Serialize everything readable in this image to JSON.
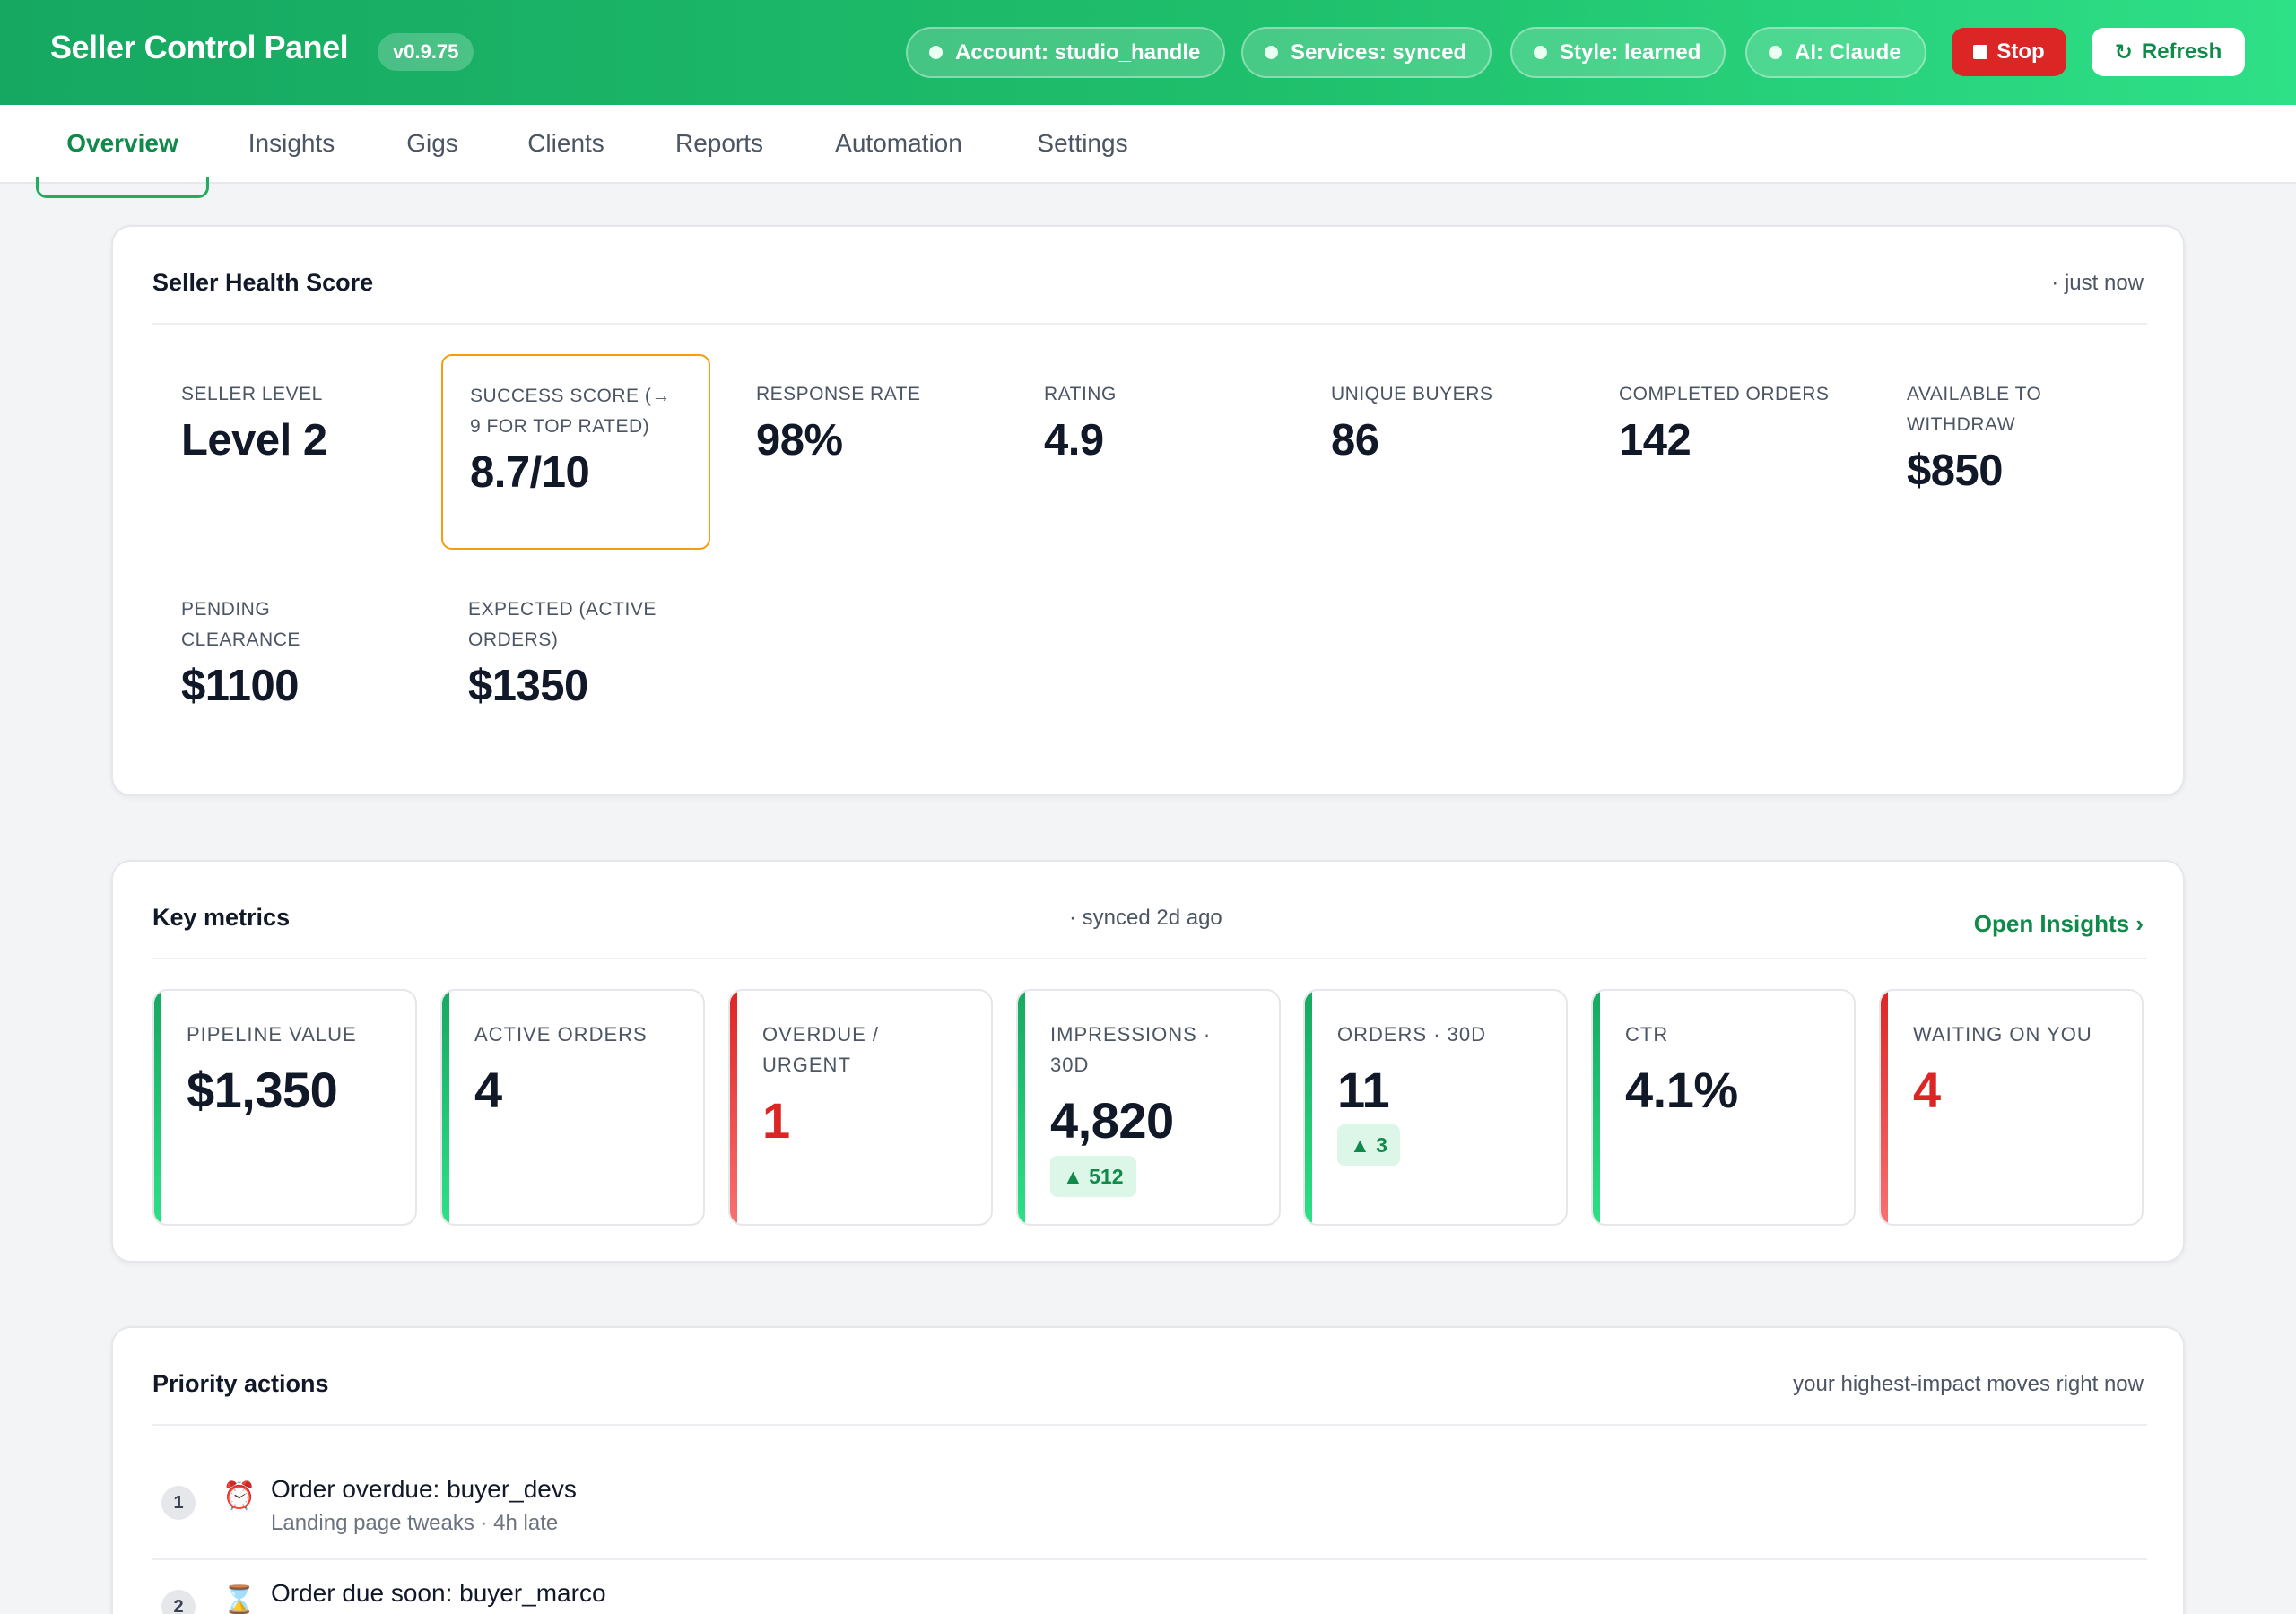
{
  "header": {
    "title": "Seller Control Panel",
    "version": "v0.9.75",
    "pills": [
      {
        "label": "Account: studio_handle"
      },
      {
        "label": "Services: synced"
      },
      {
        "label": "Style: learned"
      },
      {
        "label": "AI: Claude"
      }
    ],
    "stop_label": "Stop",
    "refresh_label": "Refresh",
    "refresh_icon": "↻"
  },
  "tabs": [
    {
      "label": "Overview",
      "active": true
    },
    {
      "label": "Insights"
    },
    {
      "label": "Gigs"
    },
    {
      "label": "Clients"
    },
    {
      "label": "Reports"
    },
    {
      "label": "Automation"
    },
    {
      "label": "Settings"
    }
  ],
  "health": {
    "title": "Seller Health Score",
    "meta": "· just now",
    "stats": [
      {
        "label": "Seller level",
        "value": "Level 2"
      },
      {
        "label": "Success score (→ 9 for Top Rated)",
        "value": "8.7/10"
      },
      {
        "label": "Response rate",
        "value": "98%"
      },
      {
        "label": "Rating",
        "value": "4.9"
      },
      {
        "label": "Unique buyers",
        "value": "86"
      },
      {
        "label": "Completed orders",
        "value": "142"
      },
      {
        "label": "Available to withdraw",
        "value": "$850"
      },
      {
        "label": "Pending clearance",
        "value": "$1100"
      },
      {
        "label": "Expected (active orders)",
        "value": "$1350"
      }
    ]
  },
  "metrics": {
    "title": "Key metrics",
    "meta": "· synced 2d ago",
    "link": "Open Insights ›",
    "tiles": [
      {
        "label": "Pipeline value",
        "value": "$1,350"
      },
      {
        "label": "Active orders",
        "value": "4"
      },
      {
        "label": "Overdue / urgent",
        "value": "1"
      },
      {
        "label": "Impressions · 30d",
        "value": "4,820",
        "delta": "▲ 512"
      },
      {
        "label": "Orders · 30d",
        "value": "11",
        "delta": "▲ 3"
      },
      {
        "label": "CTR",
        "value": "4.1%"
      },
      {
        "label": "Waiting on you",
        "value": "4"
      }
    ]
  },
  "priority": {
    "title": "Priority actions",
    "meta": "your highest-impact moves right now",
    "items": [
      {
        "num": "1",
        "icon": "⏰",
        "title": "Order overdue: buyer_devs",
        "sub": "Landing page tweaks · 4h late"
      },
      {
        "num": "2",
        "icon": "⌛",
        "title": "Order due soon: buyer_marco",
        "sub": ""
      }
    ]
  },
  "colors": {
    "brand": "#1fbf6c",
    "accent_text": "#0f8a4a",
    "danger": "#dc2626",
    "highlight_border": "#f59e0b"
  }
}
